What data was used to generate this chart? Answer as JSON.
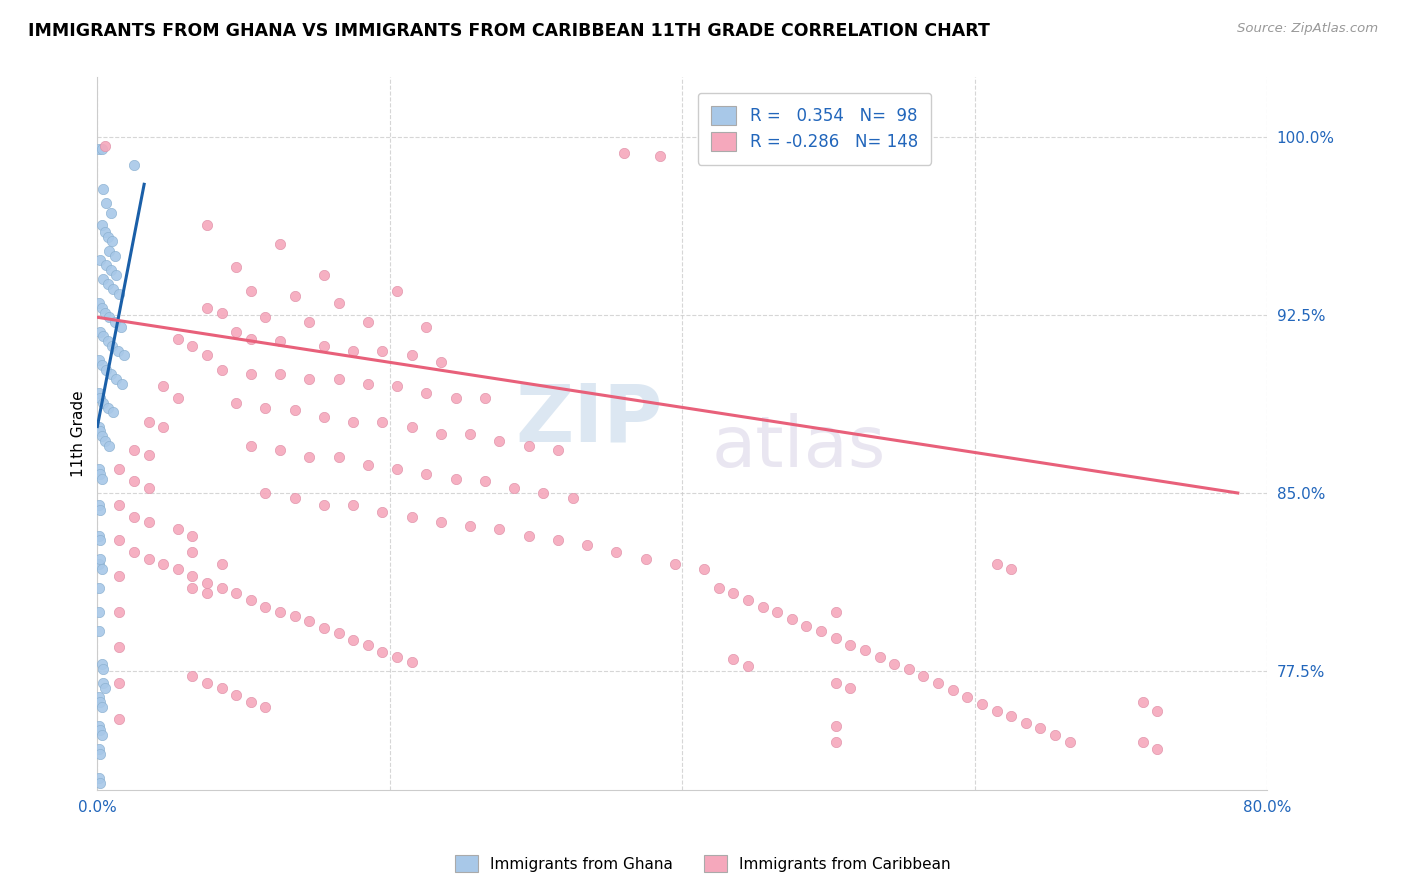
{
  "title": "IMMIGRANTS FROM GHANA VS IMMIGRANTS FROM CARIBBEAN 11TH GRADE CORRELATION CHART",
  "source": "Source: ZipAtlas.com",
  "ylabel": "11th Grade",
  "y_tick_vals": [
    1.0,
    0.925,
    0.85,
    0.775
  ],
  "y_tick_labels": [
    "100.0%",
    "92.5%",
    "85.0%",
    "77.5%"
  ],
  "xlim": [
    0.0,
    0.8
  ],
  "ylim": [
    0.725,
    1.025
  ],
  "ghana_color": "#a8c8e8",
  "caribbean_color": "#f5a8bc",
  "ghana_line_color": "#1a5fa8",
  "caribbean_line_color": "#e8607a",
  "ghana_R": 0.354,
  "ghana_N": 98,
  "caribbean_R": -0.286,
  "caribbean_N": 148,
  "legend_label_ghana": "Immigrants from Ghana",
  "legend_label_caribbean": "Immigrants from Caribbean",
  "watermark_zip": "ZIP",
  "watermark_atlas": "atlas",
  "ghana_line_x": [
    0.0,
    0.032
  ],
  "ghana_line_y": [
    0.878,
    0.98
  ],
  "caribbean_line_x": [
    0.0,
    0.78
  ],
  "caribbean_line_y": [
    0.924,
    0.85
  ],
  "ghana_scatter": [
    [
      0.001,
      0.995
    ],
    [
      0.003,
      0.995
    ],
    [
      0.025,
      0.988
    ],
    [
      0.004,
      0.978
    ],
    [
      0.006,
      0.972
    ],
    [
      0.009,
      0.968
    ],
    [
      0.003,
      0.963
    ],
    [
      0.005,
      0.96
    ],
    [
      0.007,
      0.958
    ],
    [
      0.01,
      0.956
    ],
    [
      0.008,
      0.952
    ],
    [
      0.012,
      0.95
    ],
    [
      0.002,
      0.948
    ],
    [
      0.006,
      0.946
    ],
    [
      0.009,
      0.944
    ],
    [
      0.013,
      0.942
    ],
    [
      0.004,
      0.94
    ],
    [
      0.007,
      0.938
    ],
    [
      0.011,
      0.936
    ],
    [
      0.015,
      0.934
    ],
    [
      0.001,
      0.93
    ],
    [
      0.003,
      0.928
    ],
    [
      0.005,
      0.926
    ],
    [
      0.008,
      0.924
    ],
    [
      0.012,
      0.922
    ],
    [
      0.016,
      0.92
    ],
    [
      0.002,
      0.918
    ],
    [
      0.004,
      0.916
    ],
    [
      0.007,
      0.914
    ],
    [
      0.01,
      0.912
    ],
    [
      0.014,
      0.91
    ],
    [
      0.018,
      0.908
    ],
    [
      0.001,
      0.906
    ],
    [
      0.003,
      0.904
    ],
    [
      0.006,
      0.902
    ],
    [
      0.009,
      0.9
    ],
    [
      0.013,
      0.898
    ],
    [
      0.017,
      0.896
    ],
    [
      0.001,
      0.892
    ],
    [
      0.002,
      0.89
    ],
    [
      0.004,
      0.888
    ],
    [
      0.007,
      0.886
    ],
    [
      0.011,
      0.884
    ],
    [
      0.001,
      0.878
    ],
    [
      0.002,
      0.876
    ],
    [
      0.003,
      0.874
    ],
    [
      0.005,
      0.872
    ],
    [
      0.008,
      0.87
    ],
    [
      0.001,
      0.86
    ],
    [
      0.002,
      0.858
    ],
    [
      0.003,
      0.856
    ],
    [
      0.001,
      0.845
    ],
    [
      0.002,
      0.843
    ],
    [
      0.001,
      0.832
    ],
    [
      0.002,
      0.83
    ],
    [
      0.001,
      0.82
    ],
    [
      0.001,
      0.81
    ],
    [
      0.001,
      0.8
    ],
    [
      0.001,
      0.792
    ],
    [
      0.003,
      0.778
    ],
    [
      0.004,
      0.776
    ],
    [
      0.001,
      0.764
    ],
    [
      0.002,
      0.762
    ],
    [
      0.003,
      0.76
    ],
    [
      0.001,
      0.752
    ],
    [
      0.002,
      0.75
    ],
    [
      0.003,
      0.748
    ],
    [
      0.001,
      0.742
    ],
    [
      0.002,
      0.74
    ],
    [
      0.001,
      0.73
    ],
    [
      0.002,
      0.728
    ],
    [
      0.002,
      0.822
    ],
    [
      0.003,
      0.818
    ],
    [
      0.004,
      0.77
    ],
    [
      0.005,
      0.768
    ]
  ],
  "caribbean_scatter": [
    [
      0.005,
      0.996
    ],
    [
      0.36,
      0.993
    ],
    [
      0.385,
      0.992
    ],
    [
      0.075,
      0.963
    ],
    [
      0.125,
      0.955
    ],
    [
      0.095,
      0.945
    ],
    [
      0.155,
      0.942
    ],
    [
      0.105,
      0.935
    ],
    [
      0.135,
      0.933
    ],
    [
      0.205,
      0.935
    ],
    [
      0.165,
      0.93
    ],
    [
      0.075,
      0.928
    ],
    [
      0.085,
      0.926
    ],
    [
      0.115,
      0.924
    ],
    [
      0.145,
      0.922
    ],
    [
      0.185,
      0.922
    ],
    [
      0.225,
      0.92
    ],
    [
      0.095,
      0.918
    ],
    [
      0.105,
      0.915
    ],
    [
      0.125,
      0.914
    ],
    [
      0.155,
      0.912
    ],
    [
      0.175,
      0.91
    ],
    [
      0.195,
      0.91
    ],
    [
      0.215,
      0.908
    ],
    [
      0.235,
      0.905
    ],
    [
      0.085,
      0.902
    ],
    [
      0.105,
      0.9
    ],
    [
      0.125,
      0.9
    ],
    [
      0.145,
      0.898
    ],
    [
      0.165,
      0.898
    ],
    [
      0.185,
      0.896
    ],
    [
      0.205,
      0.895
    ],
    [
      0.225,
      0.892
    ],
    [
      0.245,
      0.89
    ],
    [
      0.265,
      0.89
    ],
    [
      0.095,
      0.888
    ],
    [
      0.115,
      0.886
    ],
    [
      0.135,
      0.885
    ],
    [
      0.155,
      0.882
    ],
    [
      0.175,
      0.88
    ],
    [
      0.195,
      0.88
    ],
    [
      0.215,
      0.878
    ],
    [
      0.235,
      0.875
    ],
    [
      0.255,
      0.875
    ],
    [
      0.275,
      0.872
    ],
    [
      0.295,
      0.87
    ],
    [
      0.315,
      0.868
    ],
    [
      0.105,
      0.87
    ],
    [
      0.125,
      0.868
    ],
    [
      0.145,
      0.865
    ],
    [
      0.165,
      0.865
    ],
    [
      0.185,
      0.862
    ],
    [
      0.205,
      0.86
    ],
    [
      0.225,
      0.858
    ],
    [
      0.245,
      0.856
    ],
    [
      0.265,
      0.855
    ],
    [
      0.285,
      0.852
    ],
    [
      0.305,
      0.85
    ],
    [
      0.325,
      0.848
    ],
    [
      0.115,
      0.85
    ],
    [
      0.135,
      0.848
    ],
    [
      0.155,
      0.845
    ],
    [
      0.175,
      0.845
    ],
    [
      0.195,
      0.842
    ],
    [
      0.215,
      0.84
    ],
    [
      0.235,
      0.838
    ],
    [
      0.255,
      0.836
    ],
    [
      0.275,
      0.835
    ],
    [
      0.295,
      0.832
    ],
    [
      0.315,
      0.83
    ],
    [
      0.335,
      0.828
    ],
    [
      0.355,
      0.825
    ],
    [
      0.375,
      0.822
    ],
    [
      0.395,
      0.82
    ],
    [
      0.415,
      0.818
    ],
    [
      0.055,
      0.915
    ],
    [
      0.065,
      0.912
    ],
    [
      0.075,
      0.908
    ],
    [
      0.045,
      0.895
    ],
    [
      0.055,
      0.89
    ],
    [
      0.035,
      0.88
    ],
    [
      0.045,
      0.878
    ],
    [
      0.025,
      0.868
    ],
    [
      0.035,
      0.866
    ],
    [
      0.025,
      0.855
    ],
    [
      0.035,
      0.852
    ],
    [
      0.025,
      0.84
    ],
    [
      0.035,
      0.838
    ],
    [
      0.025,
      0.825
    ],
    [
      0.035,
      0.822
    ],
    [
      0.045,
      0.82
    ],
    [
      0.055,
      0.818
    ],
    [
      0.065,
      0.815
    ],
    [
      0.075,
      0.812
    ],
    [
      0.085,
      0.81
    ],
    [
      0.095,
      0.808
    ],
    [
      0.105,
      0.805
    ],
    [
      0.115,
      0.802
    ],
    [
      0.125,
      0.8
    ],
    [
      0.135,
      0.798
    ],
    [
      0.145,
      0.796
    ],
    [
      0.155,
      0.793
    ],
    [
      0.165,
      0.791
    ],
    [
      0.175,
      0.788
    ],
    [
      0.185,
      0.786
    ],
    [
      0.195,
      0.783
    ],
    [
      0.205,
      0.781
    ],
    [
      0.215,
      0.779
    ],
    [
      0.065,
      0.81
    ],
    [
      0.075,
      0.808
    ],
    [
      0.065,
      0.825
    ],
    [
      0.085,
      0.82
    ],
    [
      0.055,
      0.835
    ],
    [
      0.065,
      0.832
    ],
    [
      0.015,
      0.86
    ],
    [
      0.015,
      0.845
    ],
    [
      0.015,
      0.83
    ],
    [
      0.015,
      0.815
    ],
    [
      0.425,
      0.81
    ],
    [
      0.435,
      0.808
    ],
    [
      0.445,
      0.805
    ],
    [
      0.455,
      0.802
    ],
    [
      0.465,
      0.8
    ],
    [
      0.475,
      0.797
    ],
    [
      0.485,
      0.794
    ],
    [
      0.495,
      0.792
    ],
    [
      0.505,
      0.789
    ],
    [
      0.515,
      0.786
    ],
    [
      0.525,
      0.784
    ],
    [
      0.535,
      0.781
    ],
    [
      0.545,
      0.778
    ],
    [
      0.555,
      0.776
    ],
    [
      0.565,
      0.773
    ],
    [
      0.575,
      0.77
    ],
    [
      0.585,
      0.767
    ],
    [
      0.595,
      0.764
    ],
    [
      0.605,
      0.761
    ],
    [
      0.615,
      0.758
    ],
    [
      0.625,
      0.756
    ],
    [
      0.635,
      0.753
    ],
    [
      0.645,
      0.751
    ],
    [
      0.655,
      0.748
    ],
    [
      0.665,
      0.745
    ],
    [
      0.505,
      0.8
    ],
    [
      0.435,
      0.78
    ],
    [
      0.445,
      0.777
    ],
    [
      0.505,
      0.77
    ],
    [
      0.515,
      0.768
    ],
    [
      0.615,
      0.82
    ],
    [
      0.625,
      0.818
    ],
    [
      0.065,
      0.773
    ],
    [
      0.075,
      0.77
    ],
    [
      0.085,
      0.768
    ],
    [
      0.095,
      0.765
    ],
    [
      0.105,
      0.762
    ],
    [
      0.115,
      0.76
    ],
    [
      0.015,
      0.8
    ],
    [
      0.015,
      0.785
    ],
    [
      0.015,
      0.77
    ],
    [
      0.015,
      0.755
    ],
    [
      0.505,
      0.752
    ],
    [
      0.715,
      0.762
    ],
    [
      0.725,
      0.758
    ],
    [
      0.715,
      0.745
    ],
    [
      0.725,
      0.742
    ],
    [
      0.505,
      0.745
    ]
  ]
}
